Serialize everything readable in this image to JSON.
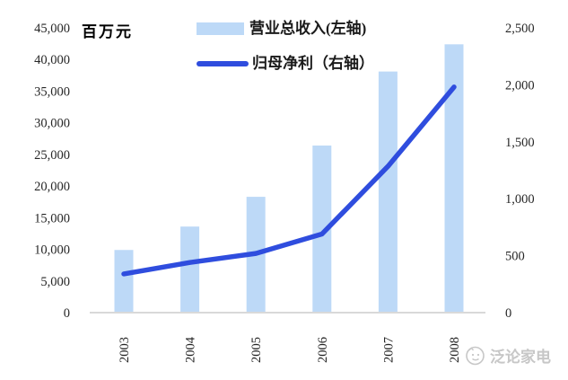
{
  "chart": {
    "unit_label": "百万元",
    "legend": {
      "bar_label": "营业总收入(左轴)",
      "line_label": "归母净利（右轴）"
    },
    "watermark_text": "泛论家电"
  },
  "colors": {
    "bar": "#bdd9f7",
    "line": "#2f4dde",
    "axis_line": "#d9d9d9",
    "tick_text": "#262626",
    "watermark": "#c7c7c7"
  },
  "chart_data": {
    "type": "bar",
    "subtype": "dual-axis bar+line combo",
    "title": "",
    "unit": "百万元",
    "categories": [
      "2003",
      "2004",
      "2005",
      "2006",
      "2007",
      "2008"
    ],
    "series": [
      {
        "name": "营业总收入(左轴)",
        "type": "bar",
        "axis": "left",
        "values": [
          9900,
          13600,
          18300,
          26400,
          38100,
          42400
        ]
      },
      {
        "name": "归母净利（右轴）",
        "type": "line",
        "axis": "right",
        "values": [
          340,
          440,
          520,
          690,
          1285,
          1980
        ]
      }
    ],
    "left_axis": {
      "min": 0,
      "max": 45000,
      "step": 5000,
      "tick_labels": [
        "0",
        "5,000",
        "10,000",
        "15,000",
        "20,000",
        "25,000",
        "30,000",
        "35,000",
        "40,000",
        "45,000"
      ]
    },
    "right_axis": {
      "min": 0,
      "max": 2500,
      "step": 500,
      "tick_labels": [
        "0",
        "500",
        "1,000",
        "1,500",
        "2,000",
        "2,500"
      ]
    },
    "grid": false,
    "legend_position": "top-center"
  }
}
